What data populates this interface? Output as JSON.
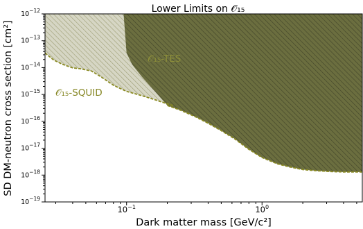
{
  "chart_data": {
    "type": "area",
    "title": "Lower Limits on 𝒪₁₅",
    "xlabel": "Dark matter mass [GeV/c²]",
    "ylabel": "SD DM-neutron cross section [cm²]",
    "xscale": "log",
    "yscale": "log",
    "xlim": [
      0.025,
      5.5
    ],
    "ylim": [
      1e-19,
      1e-12
    ],
    "grid": false,
    "x_ticks": [
      {
        "value": 0.1,
        "base": "10",
        "exp": "−1"
      },
      {
        "value": 1,
        "base": "10",
        "exp": "0"
      }
    ],
    "y_ticks": [
      {
        "value": 1e-19,
        "base": "10",
        "exp": "−19"
      },
      {
        "value": 1e-18,
        "base": "10",
        "exp": "−18"
      },
      {
        "value": 1e-17,
        "base": "10",
        "exp": "−17"
      },
      {
        "value": 1e-16,
        "base": "10",
        "exp": "−16"
      },
      {
        "value": 1e-15,
        "base": "10",
        "exp": "−15"
      },
      {
        "value": 1e-14,
        "base": "10",
        "exp": "−14"
      },
      {
        "value": 1e-13,
        "base": "10",
        "exp": "−13"
      },
      {
        "value": 1e-12,
        "base": "10",
        "exp": "−12"
      }
    ],
    "series": [
      {
        "name": "𝒪₁₅-SQUID",
        "color": "#8a8a22",
        "fill": "#d6d6c4",
        "x": [
          0.025,
          0.029,
          0.034,
          0.04,
          0.046,
          0.055,
          0.065,
          0.08,
          0.1,
          0.13,
          0.16,
          0.2,
          0.22
        ],
        "y": [
          3.5e-14,
          1.9e-14,
          1.3e-14,
          9.8e-15,
          9e-15,
          7.5e-15,
          4.5e-15,
          2.2e-15,
          1.3e-15,
          9e-16,
          6.5e-16,
          4.5e-16,
          3.9e-16
        ]
      },
      {
        "name": "𝒪₁₅-TES",
        "color": "#6e7227",
        "fill": "#6b6e3f",
        "x_left_edge": [
          0.2,
          0.16,
          0.13,
          0.11,
          0.1,
          0.095
        ],
        "y_left_edge": [
          3.9e-16,
          1.4e-15,
          4.5e-15,
          1.3e-14,
          3.5e-14,
          1e-12
        ],
        "x": [
          0.2,
          0.25,
          0.32,
          0.4,
          0.5,
          0.63,
          0.8,
          1.0,
          1.3,
          1.6,
          2.0,
          2.5,
          3.2,
          4.0,
          5.5
        ],
        "y": [
          3.9e-16,
          2.6e-16,
          1.5e-16,
          8.5e-17,
          4.5e-17,
          2.2e-17,
          9e-18,
          4.5e-18,
          2.6e-18,
          2e-18,
          1.6e-18,
          1.45e-18,
          1.35e-18,
          1.3e-18,
          1.3e-18
        ]
      }
    ]
  }
}
